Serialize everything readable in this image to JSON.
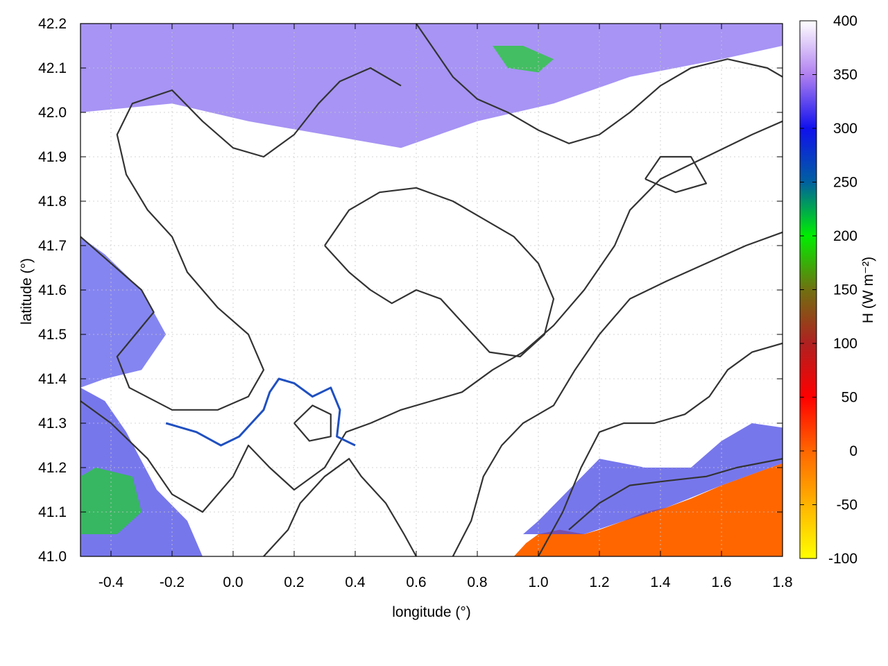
{
  "chart_data": {
    "type": "heatmap",
    "xlabel": "longitude (°)",
    "ylabel": "latitude (°)",
    "xlim": [
      -0.5,
      1.8
    ],
    "ylim": [
      41.0,
      42.2
    ],
    "x_ticks": [
      {
        "value": -0.4,
        "label": "-0.4"
      },
      {
        "value": -0.2,
        "label": "-0.2"
      },
      {
        "value": 0.0,
        "label": "0.0"
      },
      {
        "value": 0.2,
        "label": "0.2"
      },
      {
        "value": 0.4,
        "label": "0.4"
      },
      {
        "value": 0.6,
        "label": "0.6"
      },
      {
        "value": 0.8,
        "label": "0.8"
      },
      {
        "value": 1.0,
        "label": "1.0"
      },
      {
        "value": 1.2,
        "label": "1.2"
      },
      {
        "value": 1.4,
        "label": "1.4"
      },
      {
        "value": 1.6,
        "label": "1.6"
      },
      {
        "value": 1.8,
        "label": "1.8"
      }
    ],
    "y_ticks": [
      {
        "value": 41.0,
        "label": "41.0"
      },
      {
        "value": 41.1,
        "label": "41.1"
      },
      {
        "value": 41.2,
        "label": "41.2"
      },
      {
        "value": 41.3,
        "label": "41.3"
      },
      {
        "value": 41.4,
        "label": "41.4"
      },
      {
        "value": 41.5,
        "label": "41.5"
      },
      {
        "value": 41.6,
        "label": "41.6"
      },
      {
        "value": 41.7,
        "label": "41.7"
      },
      {
        "value": 41.8,
        "label": "41.8"
      },
      {
        "value": 41.9,
        "label": "41.9"
      },
      {
        "value": 42.0,
        "label": "42.0"
      },
      {
        "value": 42.1,
        "label": "42.1"
      },
      {
        "value": 42.2,
        "label": "42.2"
      }
    ],
    "grid": true,
    "colorbar": {
      "label": "H (W m⁻²)",
      "range": [
        -100,
        400
      ],
      "ticks": [
        {
          "value": 400,
          "label": "400"
        },
        {
          "value": 350,
          "label": "350"
        },
        {
          "value": 300,
          "label": "300"
        },
        {
          "value": 250,
          "label": "250"
        },
        {
          "value": 200,
          "label": "200"
        },
        {
          "value": 150,
          "label": "150"
        },
        {
          "value": 100,
          "label": "100"
        },
        {
          "value": 50,
          "label": "50"
        },
        {
          "value": 0,
          "label": "0"
        },
        {
          "value": -50,
          "label": "-50"
        },
        {
          "value": -100,
          "label": "-100"
        }
      ],
      "stops": [
        {
          "value": -100,
          "color": "#ffff00"
        },
        {
          "value": -50,
          "color": "#ffb400"
        },
        {
          "value": 0,
          "color": "#ff6600"
        },
        {
          "value": 50,
          "color": "#ff0000"
        },
        {
          "value": 100,
          "color": "#b02020"
        },
        {
          "value": 150,
          "color": "#707010"
        },
        {
          "value": 200,
          "color": "#00ee00"
        },
        {
          "value": 250,
          "color": "#0060a0"
        },
        {
          "value": 300,
          "color": "#1010ee"
        },
        {
          "value": 350,
          "color": "#b080f0"
        },
        {
          "value": 400,
          "color": "#ffffff"
        }
      ]
    },
    "regions": [
      {
        "name": "sea",
        "value": 0,
        "color": "#ff6600",
        "polygon": [
          [
            0.92,
            41.0
          ],
          [
            1.8,
            41.0
          ],
          [
            1.8,
            41.21
          ],
          [
            1.72,
            41.19
          ],
          [
            1.6,
            41.16
          ],
          [
            1.5,
            41.13
          ],
          [
            1.42,
            41.11
          ],
          [
            1.35,
            41.1
          ],
          [
            1.28,
            41.08
          ],
          [
            1.2,
            41.06
          ],
          [
            1.15,
            41.05
          ],
          [
            1.07,
            41.06
          ],
          [
            1.0,
            41.05
          ],
          [
            0.96,
            41.03
          ]
        ]
      },
      {
        "name": "coastal-strip",
        "value": 300,
        "color": "#4a4ae6",
        "polygon": [
          [
            0.95,
            41.05
          ],
          [
            1.0,
            41.08
          ],
          [
            1.1,
            41.15
          ],
          [
            1.2,
            41.22
          ],
          [
            1.35,
            41.2
          ],
          [
            1.5,
            41.2
          ],
          [
            1.6,
            41.26
          ],
          [
            1.7,
            41.3
          ],
          [
            1.8,
            41.29
          ],
          [
            1.8,
            41.21
          ],
          [
            1.6,
            41.16
          ],
          [
            1.42,
            41.11
          ],
          [
            1.28,
            41.08
          ],
          [
            1.15,
            41.05
          ],
          [
            1.0,
            41.05
          ]
        ]
      },
      {
        "name": "south-west-inland",
        "value": 300,
        "color": "#4a4ae6",
        "polygon": [
          [
            -0.5,
            41.0
          ],
          [
            -0.1,
            41.0
          ],
          [
            -0.15,
            41.08
          ],
          [
            -0.25,
            41.15
          ],
          [
            -0.35,
            41.28
          ],
          [
            -0.42,
            41.35
          ],
          [
            -0.5,
            41.38
          ]
        ]
      },
      {
        "name": "west-inland",
        "value": 300,
        "color": "#5c5cec",
        "polygon": [
          [
            -0.5,
            41.38
          ],
          [
            -0.42,
            41.4
          ],
          [
            -0.3,
            41.42
          ],
          [
            -0.22,
            41.5
          ],
          [
            -0.3,
            41.6
          ],
          [
            -0.42,
            41.68
          ],
          [
            -0.5,
            41.72
          ]
        ]
      },
      {
        "name": "pyrenees-band",
        "value": 320,
        "color": "#8a70f0",
        "polygon": [
          [
            -0.5,
            42.2
          ],
          [
            1.8,
            42.2
          ],
          [
            1.8,
            42.15
          ],
          [
            1.6,
            42.12
          ],
          [
            1.3,
            42.08
          ],
          [
            1.05,
            42.02
          ],
          [
            0.8,
            41.98
          ],
          [
            0.55,
            41.92
          ],
          [
            0.3,
            41.95
          ],
          [
            0.05,
            41.98
          ],
          [
            -0.2,
            42.02
          ],
          [
            -0.5,
            42.0
          ]
        ]
      },
      {
        "name": "vegetated-patch-west",
        "value": 200,
        "color": "#22cc33",
        "polygon": [
          [
            -0.5,
            41.05
          ],
          [
            -0.38,
            41.05
          ],
          [
            -0.3,
            41.1
          ],
          [
            -0.33,
            41.18
          ],
          [
            -0.45,
            41.2
          ],
          [
            -0.5,
            41.18
          ]
        ]
      },
      {
        "name": "vegetated-patch-north",
        "value": 200,
        "color": "#22cc33",
        "polygon": [
          [
            0.85,
            42.15
          ],
          [
            0.95,
            42.15
          ],
          [
            1.05,
            42.12
          ],
          [
            1.0,
            42.09
          ],
          [
            0.9,
            42.1
          ]
        ]
      }
    ],
    "river": {
      "name": "river",
      "color": "#2050c0",
      "points": [
        [
          -0.22,
          41.3
        ],
        [
          -0.12,
          41.28
        ],
        [
          -0.04,
          41.25
        ],
        [
          0.02,
          41.27
        ],
        [
          0.06,
          41.3
        ],
        [
          0.1,
          41.33
        ],
        [
          0.12,
          41.37
        ],
        [
          0.15,
          41.4
        ],
        [
          0.2,
          41.39
        ],
        [
          0.26,
          41.36
        ],
        [
          0.32,
          41.38
        ],
        [
          0.35,
          41.33
        ],
        [
          0.34,
          41.27
        ],
        [
          0.4,
          41.25
        ]
      ]
    },
    "contours": [
      {
        "name": "contour-1",
        "points": [
          [
            -0.5,
            41.72
          ],
          [
            -0.4,
            41.66
          ],
          [
            -0.3,
            41.6
          ],
          [
            -0.26,
            41.55
          ],
          [
            -0.32,
            41.5
          ],
          [
            -0.38,
            41.45
          ],
          [
            -0.34,
            41.38
          ],
          [
            -0.2,
            41.33
          ],
          [
            -0.05,
            41.33
          ],
          [
            0.05,
            41.36
          ],
          [
            0.1,
            41.42
          ],
          [
            0.05,
            41.5
          ],
          [
            -0.05,
            41.56
          ],
          [
            -0.15,
            41.64
          ],
          [
            -0.2,
            41.72
          ],
          [
            -0.28,
            41.78
          ],
          [
            -0.35,
            41.86
          ],
          [
            -0.38,
            41.95
          ],
          [
            -0.33,
            42.02
          ],
          [
            -0.2,
            42.05
          ],
          [
            -0.1,
            41.98
          ],
          [
            0.0,
            41.92
          ],
          [
            0.1,
            41.9
          ],
          [
            0.2,
            41.95
          ],
          [
            0.28,
            42.02
          ],
          [
            0.35,
            42.07
          ],
          [
            0.45,
            42.1
          ],
          [
            0.55,
            42.06
          ]
        ]
      },
      {
        "name": "contour-2",
        "points": [
          [
            -0.5,
            41.35
          ],
          [
            -0.4,
            41.3
          ],
          [
            -0.28,
            41.22
          ],
          [
            -0.2,
            41.14
          ],
          [
            -0.1,
            41.1
          ],
          [
            0.0,
            41.18
          ],
          [
            0.05,
            41.25
          ],
          [
            0.12,
            41.2
          ],
          [
            0.2,
            41.15
          ],
          [
            0.3,
            41.2
          ],
          [
            0.37,
            41.28
          ],
          [
            0.45,
            41.3
          ],
          [
            0.55,
            41.33
          ],
          [
            0.65,
            41.35
          ],
          [
            0.75,
            41.37
          ],
          [
            0.85,
            41.42
          ],
          [
            0.95,
            41.46
          ],
          [
            1.05,
            41.52
          ],
          [
            1.15,
            41.6
          ],
          [
            1.25,
            41.7
          ],
          [
            1.3,
            41.78
          ],
          [
            1.4,
            41.85
          ],
          [
            1.55,
            41.9
          ],
          [
            1.7,
            41.95
          ],
          [
            1.8,
            41.98
          ]
        ]
      },
      {
        "name": "contour-3",
        "points": [
          [
            0.1,
            41.0
          ],
          [
            0.18,
            41.06
          ],
          [
            0.22,
            41.12
          ],
          [
            0.3,
            41.18
          ],
          [
            0.38,
            41.22
          ],
          [
            0.42,
            41.18
          ],
          [
            0.5,
            41.12
          ],
          [
            0.56,
            41.05
          ],
          [
            0.6,
            41.0
          ]
        ]
      },
      {
        "name": "contour-4",
        "points": [
          [
            0.72,
            41.0
          ],
          [
            0.78,
            41.08
          ],
          [
            0.82,
            41.18
          ],
          [
            0.88,
            41.25
          ],
          [
            0.95,
            41.3
          ],
          [
            1.05,
            41.34
          ],
          [
            1.12,
            41.42
          ],
          [
            1.2,
            41.5
          ],
          [
            1.3,
            41.58
          ],
          [
            1.42,
            41.62
          ],
          [
            1.55,
            41.66
          ],
          [
            1.68,
            41.7
          ],
          [
            1.8,
            41.73
          ]
        ]
      },
      {
        "name": "contour-5",
        "points": [
          [
            0.3,
            41.7
          ],
          [
            0.38,
            41.78
          ],
          [
            0.48,
            41.82
          ],
          [
            0.6,
            41.83
          ],
          [
            0.72,
            41.8
          ],
          [
            0.82,
            41.76
          ],
          [
            0.92,
            41.72
          ],
          [
            1.0,
            41.66
          ],
          [
            1.05,
            41.58
          ],
          [
            1.02,
            41.5
          ],
          [
            0.94,
            41.45
          ],
          [
            0.84,
            41.46
          ],
          [
            0.76,
            41.52
          ],
          [
            0.68,
            41.58
          ],
          [
            0.6,
            41.6
          ],
          [
            0.52,
            41.57
          ],
          [
            0.45,
            41.6
          ],
          [
            0.38,
            41.64
          ],
          [
            0.3,
            41.7
          ]
        ]
      },
      {
        "name": "contour-6",
        "points": [
          [
            0.6,
            42.2
          ],
          [
            0.66,
            42.14
          ],
          [
            0.72,
            42.08
          ],
          [
            0.8,
            42.03
          ],
          [
            0.9,
            42.0
          ],
          [
            1.0,
            41.96
          ],
          [
            1.1,
            41.93
          ],
          [
            1.2,
            41.95
          ],
          [
            1.3,
            42.0
          ],
          [
            1.4,
            42.06
          ],
          [
            1.5,
            42.1
          ],
          [
            1.62,
            42.12
          ],
          [
            1.75,
            42.1
          ],
          [
            1.8,
            42.08
          ]
        ]
      },
      {
        "name": "contour-7",
        "points": [
          [
            1.0,
            41.0
          ],
          [
            1.08,
            41.1
          ],
          [
            1.14,
            41.2
          ],
          [
            1.2,
            41.28
          ],
          [
            1.28,
            41.3
          ],
          [
            1.38,
            41.3
          ],
          [
            1.48,
            41.32
          ],
          [
            1.56,
            41.36
          ],
          [
            1.62,
            41.42
          ],
          [
            1.7,
            41.46
          ],
          [
            1.8,
            41.48
          ]
        ]
      },
      {
        "name": "contour-8",
        "points": [
          [
            1.1,
            41.06
          ],
          [
            1.2,
            41.12
          ],
          [
            1.3,
            41.16
          ],
          [
            1.42,
            41.17
          ],
          [
            1.55,
            41.18
          ],
          [
            1.65,
            41.2
          ],
          [
            1.8,
            41.22
          ]
        ]
      },
      {
        "name": "contour-9",
        "points": [
          [
            0.2,
            41.3
          ],
          [
            0.25,
            41.26
          ],
          [
            0.32,
            41.27
          ],
          [
            0.32,
            41.32
          ],
          [
            0.26,
            41.34
          ],
          [
            0.2,
            41.3
          ]
        ]
      },
      {
        "name": "contour-10",
        "points": [
          [
            1.35,
            41.85
          ],
          [
            1.45,
            41.82
          ],
          [
            1.55,
            41.84
          ],
          [
            1.5,
            41.9
          ],
          [
            1.4,
            41.9
          ],
          [
            1.35,
            41.85
          ]
        ]
      }
    ]
  }
}
